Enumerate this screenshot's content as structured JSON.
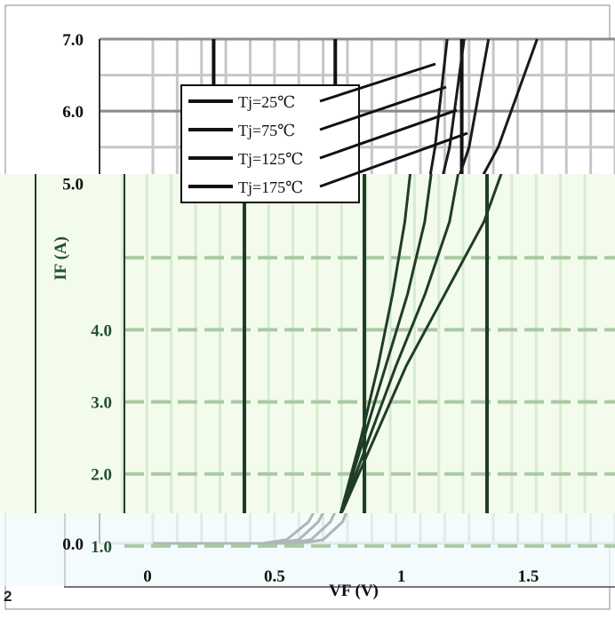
{
  "figure_label": "2",
  "chart_data": {
    "type": "line",
    "title": "",
    "xlabel": "VF (V)",
    "ylabel": "IF (A)",
    "xlim": [
      0,
      1.9
    ],
    "ylim": [
      0,
      7.0
    ],
    "xticks": [
      {
        "value": 0,
        "label": "0"
      },
      {
        "value": 0.5,
        "label": "0.5"
      },
      {
        "value": 1.0,
        "label": "1"
      },
      {
        "value": 1.5,
        "label": "1.5"
      }
    ],
    "yticks": [
      {
        "value": 0,
        "label": "0.0"
      },
      {
        "value": 1,
        "label": "1.0"
      },
      {
        "value": 2,
        "label": "2.0"
      },
      {
        "value": 3,
        "label": "3.0"
      },
      {
        "value": 4,
        "label": "4.0"
      },
      {
        "value": 5,
        "label": "5.0"
      },
      {
        "value": 6,
        "label": "6.0"
      },
      {
        "value": 7,
        "label": "7.0"
      }
    ],
    "grid": true,
    "legend_position": "top-left",
    "series": [
      {
        "name": "Tj=25℃",
        "x": [
          0,
          0.6,
          0.7,
          0.78,
          0.84,
          0.9,
          0.98,
          1.05,
          1.11,
          1.16,
          1.21
        ],
        "y": [
          0,
          0,
          0.05,
          0.3,
          0.8,
          1.5,
          2.5,
          3.5,
          4.5,
          5.5,
          7.0
        ]
      },
      {
        "name": "Tj=75℃",
        "x": [
          0,
          0.55,
          0.65,
          0.73,
          0.8,
          0.88,
          0.97,
          1.06,
          1.15,
          1.22,
          1.28
        ],
        "y": [
          0,
          0,
          0.05,
          0.3,
          0.8,
          1.5,
          2.5,
          3.5,
          4.5,
          5.5,
          7.0
        ]
      },
      {
        "name": "Tj=125℃",
        "x": [
          0,
          0.5,
          0.6,
          0.68,
          0.76,
          0.86,
          0.97,
          1.08,
          1.2,
          1.3,
          1.38
        ],
        "y": [
          0,
          0,
          0.05,
          0.3,
          0.8,
          1.5,
          2.5,
          3.5,
          4.5,
          5.5,
          7.0
        ]
      },
      {
        "name": "Tj=175℃",
        "x": [
          0,
          0.45,
          0.55,
          0.64,
          0.72,
          0.84,
          0.97,
          1.1,
          1.26,
          1.42,
          1.58
        ],
        "y": [
          0,
          0,
          0.05,
          0.3,
          0.8,
          1.5,
          2.5,
          3.5,
          4.5,
          5.5,
          7.0
        ]
      }
    ]
  },
  "colors": {
    "plot_bg": "#ffffff",
    "grid_minor": "#c6c6c6",
    "grid_major": "#8c8c8c",
    "overlay_bg": "#f2fbec",
    "overlay_grid": "#a9c9a3",
    "overlay_line": "#1f3d26",
    "overlay_label": "#24502e",
    "lower_band_bg": "#eef9fb",
    "curve": "#1a1a1a"
  }
}
